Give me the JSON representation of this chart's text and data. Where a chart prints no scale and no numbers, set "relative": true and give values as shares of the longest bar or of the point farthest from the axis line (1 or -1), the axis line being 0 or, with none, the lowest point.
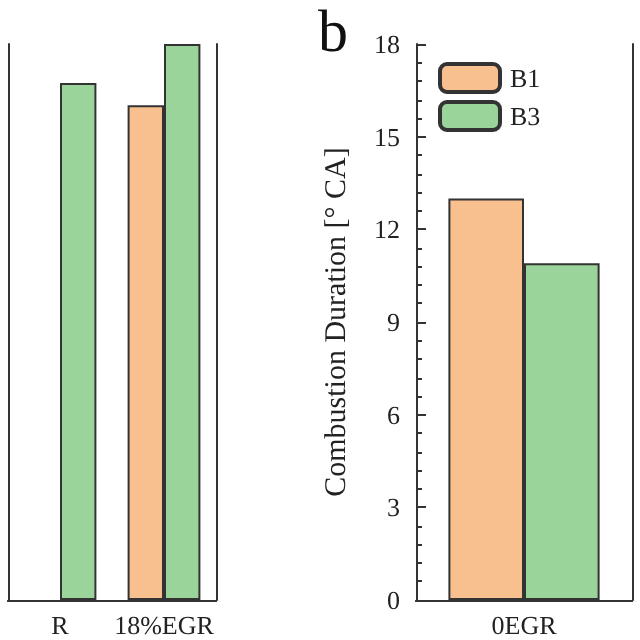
{
  "chart_data": [
    {
      "type": "bar",
      "relative": true,
      "categories": [
        "R",
        "18%EGR"
      ],
      "series": [
        {
          "color": "#f9c08f",
          "values": [
            null,
            0.89
          ]
        },
        {
          "color": "#9ad49a",
          "values": [
            0.93,
            1
          ]
        }
      ]
    },
    {
      "type": "bar",
      "title": "b",
      "ylabel": "Combustion Duration [° CA]",
      "categories": [
        "0EGR"
      ],
      "ylim": [
        0,
        18
      ],
      "yticks": [
        0,
        3,
        6,
        9,
        12,
        15,
        18
      ],
      "legend": "top left",
      "series": [
        {
          "name": "B1",
          "color": "#f9c08f",
          "values": [
            13
          ]
        },
        {
          "name": "B3",
          "color": "#9ad49a",
          "values": [
            10.9
          ]
        }
      ]
    }
  ]
}
